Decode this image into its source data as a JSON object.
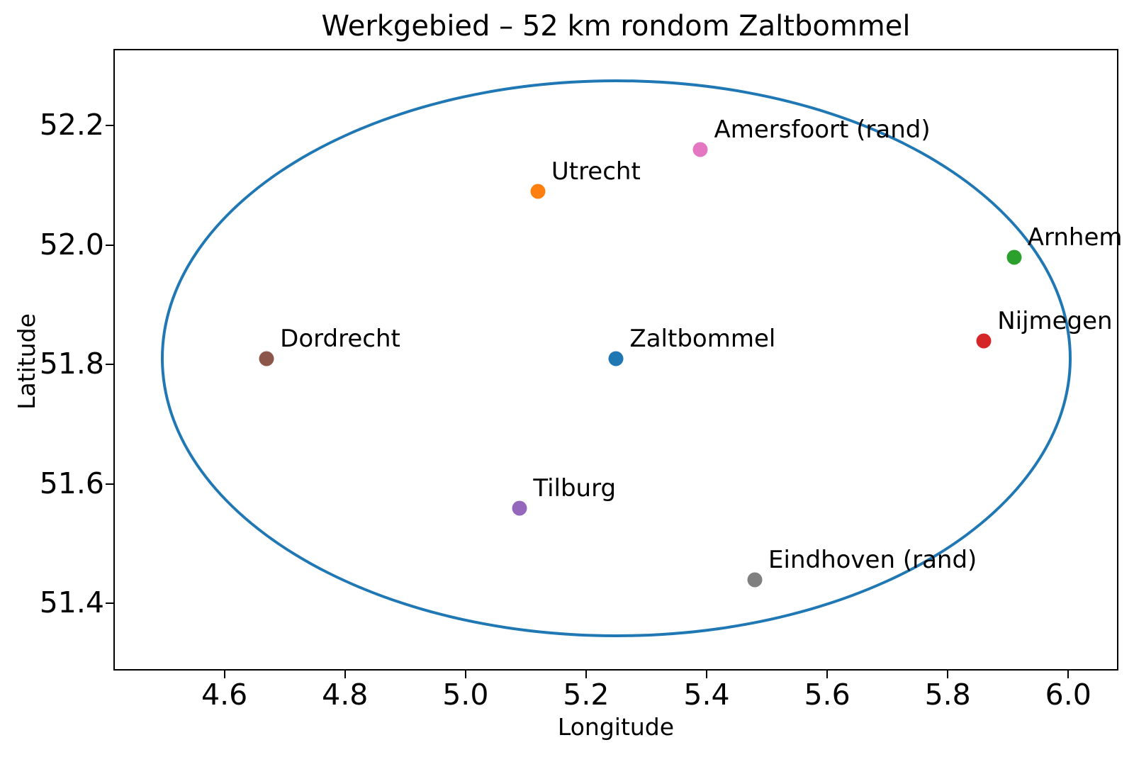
{
  "figure": {
    "title": "Werkgebied – 52 km rondom Zaltbommel",
    "xlabel": "Longitude",
    "ylabel": "Latitude"
  },
  "chart_data": {
    "type": "scatter",
    "title": "Werkgebied – 52 km rondom Zaltbommel",
    "xlabel": "Longitude",
    "ylabel": "Latitude",
    "xlim": [
      4.417,
      6.082
    ],
    "ylim": [
      51.289,
      52.327
    ],
    "x_ticks": [
      4.6,
      4.8,
      5.0,
      5.2,
      5.4,
      5.6,
      5.8,
      6.0
    ],
    "y_ticks": [
      51.4,
      51.6,
      51.8,
      52.0,
      52.2
    ],
    "grid": false,
    "legend": "none",
    "points": [
      {
        "label": "Zaltbommel",
        "x": 5.25,
        "y": 51.81,
        "color": "#1f77b4"
      },
      {
        "label": "Utrecht",
        "x": 5.12,
        "y": 52.09,
        "color": "#ff7f0e"
      },
      {
        "label": "Arnhem",
        "x": 5.91,
        "y": 51.98,
        "color": "#2ca02c"
      },
      {
        "label": "Nijmegen",
        "x": 5.86,
        "y": 51.84,
        "color": "#d62728"
      },
      {
        "label": "Tilburg",
        "x": 5.09,
        "y": 51.56,
        "color": "#9467bd"
      },
      {
        "label": "Dordrecht",
        "x": 4.67,
        "y": 51.81,
        "color": "#8c564b"
      },
      {
        "label": "Amersfoort (rand)",
        "x": 5.39,
        "y": 52.16,
        "color": "#e377c2"
      },
      {
        "label": "Eindhoven (rand)",
        "x": 5.48,
        "y": 51.44,
        "color": "#7f7f7f"
      }
    ],
    "circle": {
      "meaning": "52 km radius around Zaltbommel",
      "center_x": 5.25,
      "center_y": 51.81,
      "rx_deg": 0.755,
      "ry_deg": 0.467,
      "radius_km": 52,
      "color": "#1f77b4",
      "stroke_px": 4
    }
  }
}
